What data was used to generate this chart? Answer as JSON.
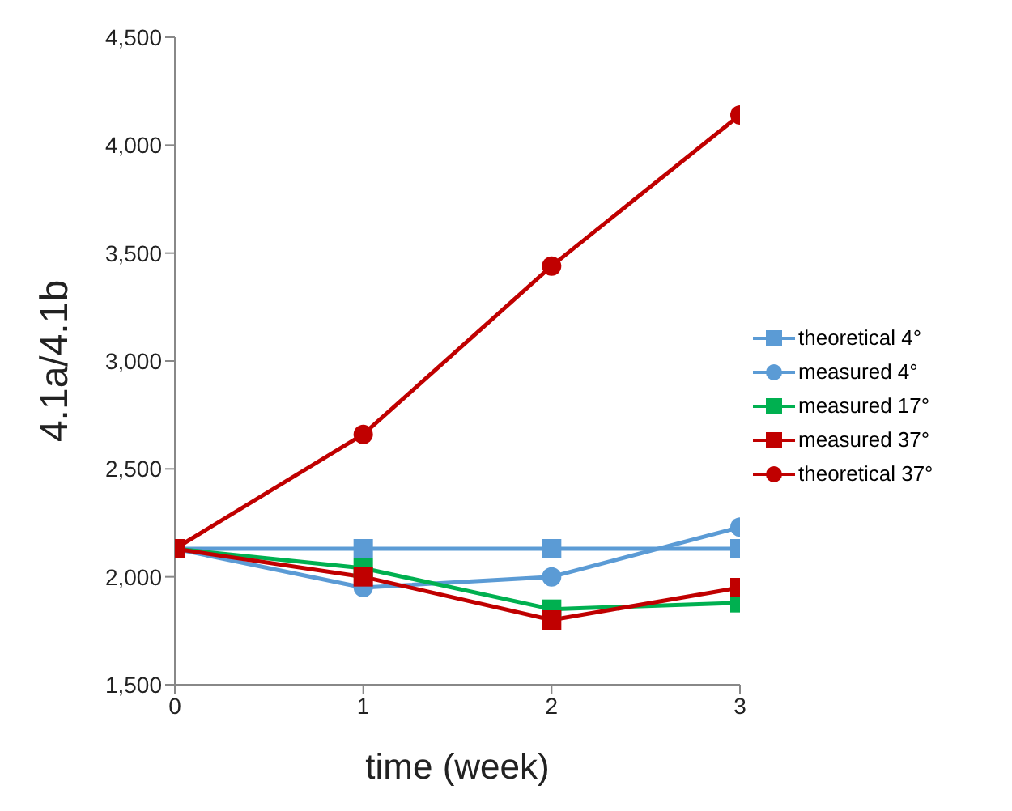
{
  "chart_data": {
    "type": "line",
    "xlabel": "time (week)",
    "ylabel": "4.1a/4.1b",
    "x": [
      0,
      1,
      2,
      3
    ],
    "xlim": [
      0,
      3
    ],
    "xticks": [
      0,
      1,
      2,
      3
    ],
    "ylim": [
      1500,
      4500
    ],
    "yticks": [
      {
        "value": 1500,
        "label": "1,500"
      },
      {
        "value": 2000,
        "label": "2,000"
      },
      {
        "value": 2500,
        "label": "2,500"
      },
      {
        "value": 3000,
        "label": "3,000"
      },
      {
        "value": 3500,
        "label": "3,500"
      },
      {
        "value": 4000,
        "label": "4,000"
      },
      {
        "value": 4500,
        "label": "4,500"
      }
    ],
    "grid": false,
    "legend": "right",
    "line_style": "solid",
    "series": [
      {
        "name": "theoretical 4°",
        "color": "#5b9bd5",
        "marker": "square",
        "values": [
          2130,
          2130,
          2130,
          2130
        ]
      },
      {
        "name": "measured 4°",
        "color": "#5b9bd5",
        "marker": "circle",
        "values": [
          2130,
          1950,
          2000,
          2230
        ]
      },
      {
        "name": "measured 17°",
        "color": "#00b050",
        "marker": "square",
        "values": [
          2130,
          2040,
          1850,
          1880
        ]
      },
      {
        "name": "measured 37°",
        "color": "#c00000",
        "marker": "square",
        "values": [
          2130,
          2000,
          1800,
          1950
        ]
      },
      {
        "name": "theoretical 37°",
        "color": "#c00000",
        "marker": "circle",
        "values": [
          2130,
          2660,
          3440,
          4140
        ]
      }
    ]
  }
}
